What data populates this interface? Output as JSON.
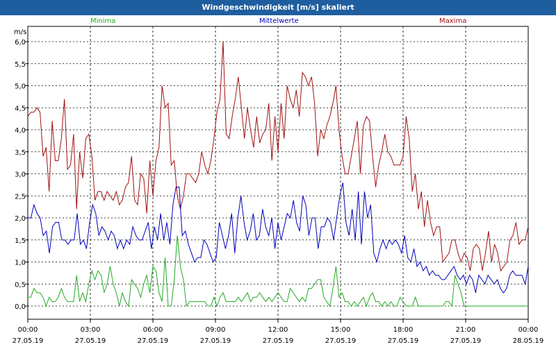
{
  "title": "Windgeschwindigkeit [m/s] skaliert",
  "colors": {
    "min": "#22aa22",
    "mean": "#0000bb",
    "max": "#a01010",
    "titlebar": "#1f5e9e"
  },
  "chart_data": {
    "type": "line",
    "title": "Windgeschwindigkeit [m/s] skaliert",
    "ylabel": "m/s",
    "xlabel": "",
    "ylim": [
      0,
      6.0
    ],
    "xlim_hours": [
      0,
      24
    ],
    "yticks": [
      "0,0",
      "0,5",
      "1,0",
      "1,5",
      "2,0",
      "2,5",
      "3,0",
      "3,5",
      "4,0",
      "4,5",
      "5,0",
      "5,5",
      "6,0"
    ],
    "xticks": [
      {
        "time": "00:00",
        "date": "27.05.19"
      },
      {
        "time": "03:00",
        "date": "27.05.19"
      },
      {
        "time": "06:00",
        "date": "27.05.19"
      },
      {
        "time": "09:00",
        "date": "27.05.19"
      },
      {
        "time": "12:00",
        "date": "27.05.19"
      },
      {
        "time": "15:00",
        "date": "27.05.19"
      },
      {
        "time": "18:00",
        "date": "27.05.19"
      },
      {
        "time": "21:00",
        "date": "27.05.19"
      },
      {
        "time": "00:00",
        "date": "28.05.19"
      }
    ],
    "grid": true,
    "legend": [
      "Minima",
      "Mittelwerte",
      "Maxima"
    ],
    "series": [
      {
        "name": "Maxima",
        "color": "#a01010",
        "values": [
          4.3,
          4.4,
          4.4,
          4.5,
          4.4,
          3.4,
          3.6,
          2.6,
          4.2,
          3.3,
          3.3,
          3.8,
          4.7,
          3.1,
          3.2,
          3.9,
          2.2,
          3.5,
          2.9,
          3.8,
          3.9,
          3.4,
          2.4,
          2.6,
          2.6,
          2.4,
          2.6,
          2.5,
          2.4,
          2.6,
          2.3,
          2.4,
          2.7,
          2.8,
          3.4,
          2.4,
          2.3,
          3.0,
          2.9,
          2.1,
          3.3,
          2.5,
          3.3,
          3.6,
          5.0,
          4.5,
          4.6,
          3.2,
          3.3,
          2.5,
          2.2,
          2.5,
          3.0,
          3.0,
          2.9,
          2.8,
          3.0,
          3.5,
          3.2,
          3.0,
          3.3,
          3.8,
          4.4,
          4.7,
          6.0,
          3.9,
          3.8,
          4.3,
          4.7,
          5.2,
          4.5,
          3.8,
          4.5,
          4.0,
          3.6,
          4.3,
          3.7,
          3.9,
          4.0,
          4.6,
          3.3,
          4.3,
          3.5,
          4.6,
          3.8,
          5.0,
          4.7,
          4.5,
          4.9,
          4.3,
          5.3,
          5.2,
          5.0,
          5.2,
          4.6,
          3.4,
          4.0,
          3.8,
          4.1,
          4.3,
          4.6,
          5.0,
          4.0,
          3.4,
          3.0,
          3.0,
          3.4,
          3.8,
          4.2,
          3.0,
          4.1,
          4.3,
          4.2,
          3.4,
          2.7,
          3.2,
          3.5,
          3.9,
          3.5,
          3.4,
          3.2,
          3.2,
          3.2,
          3.4,
          4.3,
          3.8,
          2.6,
          3.0,
          2.2,
          2.6,
          1.8,
          2.4,
          1.9,
          1.6,
          1.8,
          1.8,
          1.0,
          1.1,
          1.2,
          1.5,
          1.5,
          1.2,
          1.0,
          1.2,
          1.1,
          0.8,
          1.3,
          1.4,
          1.3,
          0.8,
          1.2,
          1.7,
          1.0,
          1.4,
          1.2,
          0.8,
          0.9,
          1.0,
          1.5,
          1.6,
          1.9,
          1.4,
          1.5,
          1.5,
          1.8
        ]
      },
      {
        "name": "Mittelwerte",
        "color": "#0000bb",
        "values": [
          2.0,
          2.0,
          2.3,
          2.1,
          2.0,
          1.6,
          1.7,
          1.2,
          1.8,
          1.9,
          1.9,
          1.5,
          1.5,
          1.4,
          1.5,
          1.5,
          2.1,
          1.4,
          1.5,
          1.3,
          1.9,
          2.3,
          2.1,
          1.6,
          1.8,
          1.7,
          1.5,
          1.7,
          1.6,
          1.3,
          1.5,
          1.3,
          1.5,
          1.4,
          1.8,
          1.6,
          1.5,
          1.5,
          1.7,
          1.9,
          1.3,
          1.8,
          1.5,
          2.1,
          1.5,
          1.9,
          1.4,
          2.3,
          2.7,
          2.7,
          1.6,
          1.7,
          1.4,
          1.2,
          1.0,
          1.1,
          1.1,
          1.5,
          1.4,
          1.2,
          1.0,
          1.1,
          1.9,
          1.6,
          1.3,
          1.6,
          2.1,
          1.2,
          2.0,
          2.5,
          1.9,
          1.5,
          1.7,
          2.1,
          1.5,
          1.6,
          2.2,
          1.8,
          1.6,
          2.0,
          1.3,
          1.9,
          1.5,
          1.8,
          2.1,
          2.0,
          2.4,
          1.9,
          1.7,
          2.5,
          2.3,
          1.6,
          2.0,
          2.0,
          1.3,
          1.8,
          1.8,
          2.0,
          1.9,
          1.5,
          2.0,
          2.5,
          2.8,
          1.9,
          1.6,
          2.2,
          1.5,
          2.6,
          1.4,
          2.6,
          2.0,
          2.3,
          1.2,
          1.0,
          1.3,
          1.5,
          1.3,
          1.5,
          1.4,
          1.5,
          1.4,
          1.2,
          1.6,
          1.1,
          1.0,
          1.3,
          0.9,
          1.0,
          0.8,
          0.9,
          0.7,
          0.8,
          0.7,
          0.7,
          0.6,
          0.6,
          0.7,
          0.8,
          0.9,
          0.7,
          0.6,
          0.7,
          0.5,
          0.7,
          0.6,
          0.3,
          0.7,
          0.6,
          0.5,
          0.7,
          0.6,
          0.5,
          0.6,
          0.4,
          0.3,
          0.4,
          0.7,
          0.8,
          0.7,
          0.7,
          0.7,
          0.5,
          0.9
        ]
      },
      {
        "name": "Minima",
        "color": "#22aa22",
        "values": [
          0.2,
          0.2,
          0.4,
          0.3,
          0.3,
          0.2,
          0.0,
          0.2,
          0.1,
          0.1,
          0.2,
          0.4,
          0.2,
          0.1,
          0.1,
          0.1,
          0.7,
          0.1,
          0.3,
          0.1,
          0.5,
          0.8,
          0.6,
          0.8,
          0.7,
          0.3,
          0.5,
          0.9,
          0.5,
          0.3,
          0.0,
          0.3,
          0.1,
          0.0,
          0.6,
          0.5,
          0.4,
          0.2,
          0.5,
          0.7,
          0.3,
          0.9,
          0.8,
          0.3,
          0.1,
          1.1,
          0.0,
          0.0,
          0.6,
          1.6,
          0.9,
          0.6,
          0.0,
          0.1,
          0.1,
          0.1,
          0.1,
          0.1,
          0.1,
          0.0,
          0.0,
          0.2,
          0.0,
          0.2,
          0.3,
          0.1,
          0.1,
          0.1,
          0.1,
          0.2,
          0.1,
          0.2,
          0.3,
          0.1,
          0.2,
          0.2,
          0.3,
          0.2,
          0.1,
          0.2,
          0.1,
          0.2,
          0.3,
          0.2,
          0.1,
          0.1,
          0.4,
          0.3,
          0.2,
          0.1,
          0.2,
          0.1,
          0.4,
          0.4,
          0.5,
          0.6,
          0.6,
          0.2,
          0.1,
          0.0,
          0.4,
          0.9,
          0.2,
          0.3,
          0.1,
          0.1,
          0.0,
          0.1,
          0.0,
          0.1,
          0.2,
          0.0,
          0.2,
          0.3,
          0.1,
          0.1,
          0.0,
          0.1,
          0.0,
          0.1,
          0.0,
          0.0,
          0.2,
          0.1,
          0.0,
          0.0,
          0.0,
          0.2,
          0.0,
          0.0,
          0.0,
          0.0,
          0.0,
          0.0,
          0.0,
          0.0,
          0.0,
          0.1,
          0.1,
          0.0,
          0.7,
          0.5,
          0.3,
          0.0,
          0.0,
          0.0,
          0.0,
          0.0,
          0.0,
          0.0,
          0.0,
          0.0,
          0.0,
          0.0,
          0.0,
          0.0,
          0.0,
          0.0,
          0.0,
          0.0,
          0.0,
          0.0,
          0.0,
          0.0,
          0.0
        ]
      }
    ]
  }
}
